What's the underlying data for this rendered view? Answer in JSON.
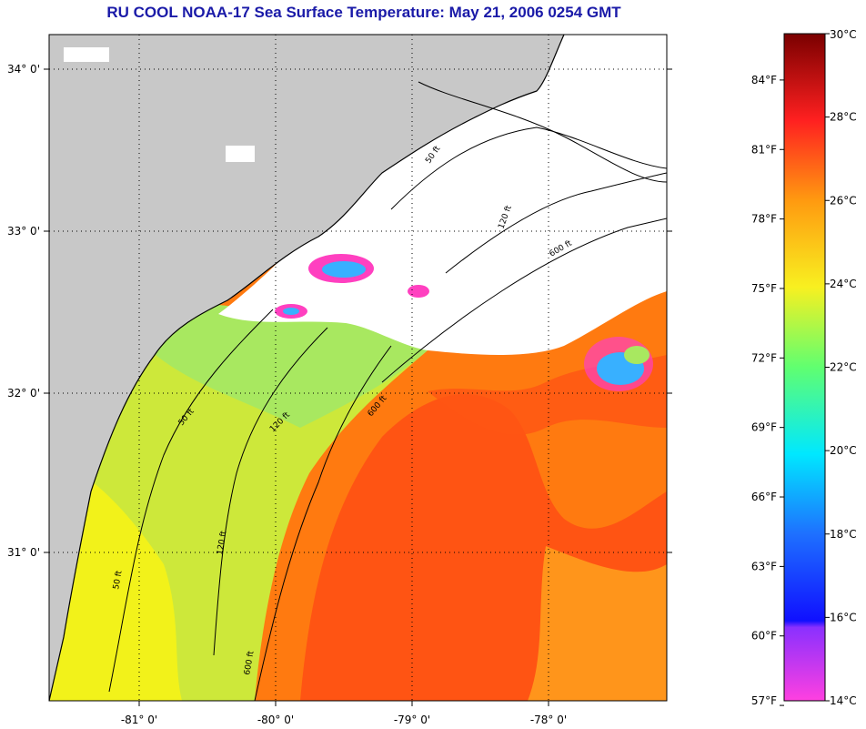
{
  "title": "RU COOL  NOAA-17  Sea Surface Temperature:  May 21, 2006 0254 GMT",
  "map": {
    "lat_labels": [
      "34° 0'",
      "33° 0'",
      "32° 0'",
      "31° 0'"
    ],
    "lon_labels": [
      "-81° 0'",
      "-80° 0'",
      "-79° 0'",
      "-78° 0'"
    ],
    "contour_labels": [
      "50 ft",
      "120 ft",
      "600 ft"
    ],
    "colors": {
      "land": "#c8c8c8",
      "cloud": "#ffffff",
      "coastal_yellow": "#f2f21a",
      "shelf_green": "#a8e84a",
      "gulfstream_orange": "#ff7a10",
      "gulfstream_red": "#ff4a10",
      "cold_blue": "#38b0ff",
      "cold_magenta": "#ff40c0"
    }
  },
  "colorbar": {
    "fahrenheit": [
      "84°F",
      "81°F",
      "78°F",
      "75°F",
      "72°F",
      "69°F",
      "66°F",
      "63°F",
      "60°F",
      "57°F"
    ],
    "celsius": [
      "30°C",
      "28°C",
      "26°C",
      "24°C",
      "22°C",
      "20°C",
      "18°C",
      "16°C",
      "14°C"
    ]
  }
}
